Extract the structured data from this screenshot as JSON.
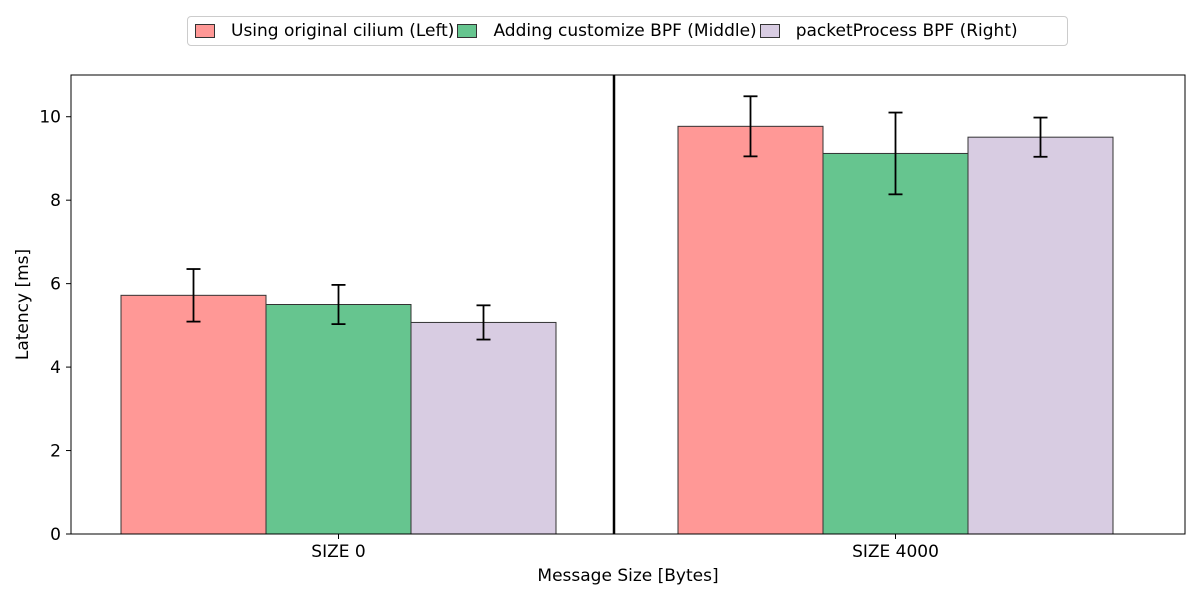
{
  "chart_data": {
    "type": "bar",
    "categories": [
      "SIZE 0",
      "SIZE 4000"
    ],
    "xlabel": "Message Size [Bytes]",
    "ylabel": "Latency [ms]",
    "ylim": [
      0,
      11
    ],
    "yticks": [
      0,
      2,
      4,
      6,
      8,
      10
    ],
    "legend_position": "top-center",
    "grid": false,
    "series": [
      {
        "name": "Using original cilium (Left)",
        "color": "#ff9896",
        "values": [
          5.72,
          9.77
        ],
        "error": [
          0.63,
          0.72
        ]
      },
      {
        "name": "Adding customize BPF (Middle)",
        "color": "#66c58f",
        "values": [
          5.5,
          9.12
        ],
        "error": [
          0.47,
          0.98
        ]
      },
      {
        "name": "packetProcess BPF (Right)",
        "color": "#d8cce2",
        "values": [
          5.07,
          9.51
        ],
        "error": [
          0.41,
          0.47
        ]
      }
    ]
  }
}
